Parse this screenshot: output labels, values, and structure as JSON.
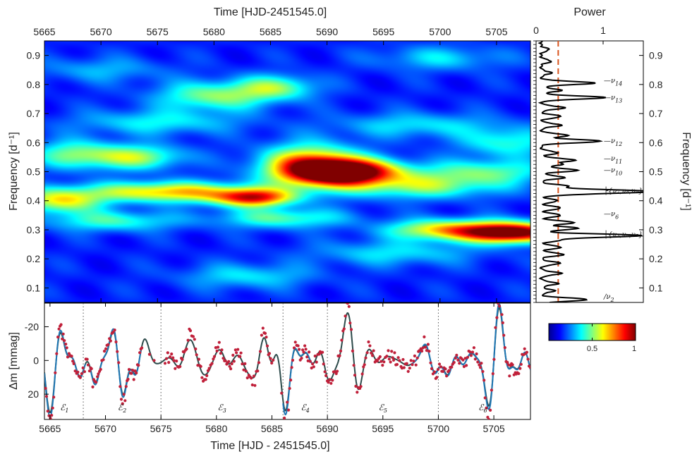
{
  "chart_data": [
    {
      "type": "heatmap",
      "name": "time-frequency power map",
      "xlabel_top": "Time [HJD-2451545.0]",
      "ylabel": "Frequency [d⁻¹]",
      "xlim": [
        5665,
        5708
      ],
      "ylim": [
        0.05,
        0.95
      ],
      "xticks": [
        5665,
        5670,
        5675,
        5680,
        5685,
        5690,
        5695,
        5700,
        5705
      ],
      "xtick_labels": [
        "5665",
        "5670",
        "5675",
        "5680",
        "5685",
        "5690",
        "5695",
        "5700",
        "5705"
      ],
      "yticks": [
        0.1,
        0.2,
        0.3,
        0.4,
        0.5,
        0.6,
        0.7,
        0.8,
        0.9
      ],
      "ytick_labels": [
        "0.1",
        "0.2",
        "0.3",
        "0.4",
        "0.5",
        "0.6",
        "0.7",
        "0.8",
        "0.9"
      ],
      "colormap": "jet",
      "colorbar": {
        "range": [
          0,
          1
        ],
        "tick_labels": [
          "0.5",
          "1"
        ],
        "tick_values": [
          0.5,
          1
        ]
      },
      "blobs": [
        {
          "t": 5691.8,
          "f": 0.5,
          "st": 3.2,
          "sf": 0.03,
          "a": 1.0
        },
        {
          "t": 5706.5,
          "f": 0.29,
          "st": 3.0,
          "sf": 0.025,
          "a": 0.98
        },
        {
          "t": 5683.5,
          "f": 0.41,
          "st": 2.5,
          "sf": 0.022,
          "a": 0.72
        },
        {
          "t": 5676.0,
          "f": 0.43,
          "st": 5.0,
          "sf": 0.025,
          "a": 0.58
        },
        {
          "t": 5666.5,
          "f": 0.4,
          "st": 2.5,
          "sf": 0.03,
          "a": 0.5
        },
        {
          "t": 5688.5,
          "f": 0.52,
          "st": 3.0,
          "sf": 0.05,
          "a": 0.7
        },
        {
          "t": 5700.5,
          "f": 0.3,
          "st": 3.5,
          "sf": 0.025,
          "a": 0.55
        },
        {
          "t": 5698.0,
          "f": 0.45,
          "st": 5.0,
          "sf": 0.03,
          "a": 0.38
        },
        {
          "t": 5673.0,
          "f": 0.55,
          "st": 3.0,
          "sf": 0.03,
          "a": 0.42
        },
        {
          "t": 5680.0,
          "f": 0.76,
          "st": 3.5,
          "sf": 0.035,
          "a": 0.38
        },
        {
          "t": 5685.5,
          "f": 0.79,
          "st": 2.5,
          "sf": 0.03,
          "a": 0.35
        },
        {
          "t": 5667.5,
          "f": 0.56,
          "st": 2.5,
          "sf": 0.035,
          "a": 0.33
        },
        {
          "t": 5686.0,
          "f": 0.34,
          "st": 4.0,
          "sf": 0.025,
          "a": 0.33
        },
        {
          "t": 5671.0,
          "f": 0.33,
          "st": 4.0,
          "sf": 0.025,
          "a": 0.3
        },
        {
          "t": 5704.0,
          "f": 0.5,
          "st": 4.0,
          "sf": 0.03,
          "a": 0.32
        },
        {
          "t": 5706.0,
          "f": 0.6,
          "st": 3.0,
          "sf": 0.035,
          "a": 0.28
        },
        {
          "t": 5675.0,
          "f": 0.67,
          "st": 5.0,
          "sf": 0.03,
          "a": 0.24
        },
        {
          "t": 5698.0,
          "f": 0.66,
          "st": 5.0,
          "sf": 0.03,
          "a": 0.22
        },
        {
          "t": 5696.0,
          "f": 0.22,
          "st": 5.0,
          "sf": 0.03,
          "a": 0.22
        },
        {
          "t": 5683.0,
          "f": 0.14,
          "st": 4.0,
          "sf": 0.03,
          "a": 0.22
        },
        {
          "t": 5700.0,
          "f": 0.89,
          "st": 4.0,
          "sf": 0.03,
          "a": 0.2
        },
        {
          "t": 5670.0,
          "f": 0.85,
          "st": 4.0,
          "sf": 0.03,
          "a": 0.16
        }
      ],
      "background": 0.08
    },
    {
      "type": "line",
      "name": "power spectrum",
      "xlabel_top": "Power",
      "ylabel": "Frequency [d⁻¹]",
      "xlim": [
        0,
        1.6
      ],
      "xticks": [
        0,
        1
      ],
      "xtick_labels": [
        "0",
        "1"
      ],
      "ylim": [
        0.05,
        0.95
      ],
      "yticks": [
        0.1,
        0.2,
        0.3,
        0.4,
        0.5,
        0.6,
        0.7,
        0.8,
        0.9
      ],
      "ytick_labels": [
        "0.1",
        "0.2",
        "0.3",
        "0.4",
        "0.5",
        "0.6",
        "0.7",
        "0.8",
        "0.9"
      ],
      "threshold": 0.33,
      "threshold_color": "#d9541e",
      "peaks": [
        {
          "f": 0.06,
          "p": 0.7
        },
        {
          "f": 0.09,
          "p": 0.2
        },
        {
          "f": 0.115,
          "p": 0.25
        },
        {
          "f": 0.15,
          "p": 0.3
        },
        {
          "f": 0.185,
          "p": 0.28
        },
        {
          "f": 0.215,
          "p": 0.34
        },
        {
          "f": 0.24,
          "p": 0.3
        },
        {
          "f": 0.265,
          "p": 0.28
        },
        {
          "f": 0.28,
          "p": 1.5
        },
        {
          "f": 0.305,
          "p": 0.55
        },
        {
          "f": 0.325,
          "p": 0.5
        },
        {
          "f": 0.35,
          "p": 0.3
        },
        {
          "f": 0.375,
          "p": 0.3
        },
        {
          "f": 0.4,
          "p": 0.25
        },
        {
          "f": 0.425,
          "p": 0.52
        },
        {
          "f": 0.433,
          "p": 1.45
        },
        {
          "f": 0.45,
          "p": 0.4
        },
        {
          "f": 0.48,
          "p": 0.35
        },
        {
          "f": 0.505,
          "p": 0.55
        },
        {
          "f": 0.525,
          "p": 0.3
        },
        {
          "f": 0.54,
          "p": 0.5
        },
        {
          "f": 0.565,
          "p": 0.25
        },
        {
          "f": 0.605,
          "p": 0.9
        },
        {
          "f": 0.625,
          "p": 0.4
        },
        {
          "f": 0.66,
          "p": 0.3
        },
        {
          "f": 0.69,
          "p": 0.3
        },
        {
          "f": 0.72,
          "p": 0.35
        },
        {
          "f": 0.755,
          "p": 0.95
        },
        {
          "f": 0.78,
          "p": 0.3
        },
        {
          "f": 0.805,
          "p": 0.8
        },
        {
          "f": 0.84,
          "p": 0.15
        },
        {
          "f": 0.88,
          "p": 0.15
        },
        {
          "f": 0.92,
          "p": 0.12
        }
      ],
      "noise_floor": 0.05,
      "annotations": [
        {
          "f": 0.813,
          "label": "ν",
          "sub": "14",
          "prefix": "—"
        },
        {
          "f": 0.755,
          "label": "ν",
          "sub": "13",
          "prefix": "—"
        },
        {
          "f": 0.605,
          "label": "ν",
          "sub": "12",
          "prefix": "—"
        },
        {
          "f": 0.545,
          "label": "ν",
          "sub": "11",
          "prefix": "—"
        },
        {
          "f": 0.505,
          "label": "ν",
          "sub": "10",
          "prefix": "—"
        },
        {
          "f": 0.433,
          "label": "{ν₇,ν₈,ν₉}",
          "sub": "",
          "prefix": "├"
        },
        {
          "f": 0.355,
          "label": "ν",
          "sub": "6",
          "prefix": "—"
        },
        {
          "f": 0.283,
          "label": "{ν₃,ν₄,ν₅}",
          "sub": "",
          "prefix": "├"
        },
        {
          "f": 0.07,
          "label": "ν",
          "sub": "2",
          "prefix": "∕"
        }
      ]
    },
    {
      "type": "line",
      "name": "light curve",
      "xlabel": "Time [HJD - 2451545.0]",
      "ylabel": "Δm [mmag]",
      "xlim": [
        5664.5,
        5708.3
      ],
      "ylim": [
        -34,
        35
      ],
      "y_reversed": true,
      "xticks": [
        5665,
        5670,
        5675,
        5680,
        5685,
        5690,
        5695,
        5700,
        5705
      ],
      "xtick_labels": [
        "5665",
        "5670",
        "5675",
        "5680",
        "5685",
        "5690",
        "5695",
        "5700",
        "5705"
      ],
      "yticks": [
        -20,
        0,
        20
      ],
      "ytick_labels": [
        "-20",
        "0",
        "20"
      ],
      "epoch_boundaries": [
        5668,
        5675,
        5686,
        5690,
        5700
      ],
      "epochs": [
        {
          "label": "ℰ",
          "sub": "1",
          "t": 5666.3
        },
        {
          "label": "ℰ",
          "sub": "2",
          "t": 5671.5
        },
        {
          "label": "ℰ",
          "sub": "3",
          "t": 5680.5
        },
        {
          "label": "ℰ",
          "sub": "4",
          "t": 5688.0
        },
        {
          "label": "ℰ",
          "sub": "5",
          "t": 5695.0
        },
        {
          "label": "ℰ",
          "sub": "6",
          "t": 5704.0
        }
      ],
      "model_color": "#2c4a4a",
      "fit_color": "#1f77b4",
      "point_color": "#c0203a",
      "components": [
        {
          "A": 6.0,
          "f": 0.28,
          "ph": 0.5
        },
        {
          "A": 5.0,
          "f": 0.433,
          "ph": 1.8
        },
        {
          "A": 3.2,
          "f": 0.505,
          "ph": 2.7
        },
        {
          "A": 2.2,
          "f": 0.605,
          "ph": 0.3
        },
        {
          "A": 1.8,
          "f": 0.755,
          "ph": 1.1
        },
        {
          "A": 1.3,
          "f": 0.813,
          "ph": 2.2
        },
        {
          "A": 2.0,
          "f": 0.06,
          "ph": 0.9
        }
      ]
    }
  ]
}
